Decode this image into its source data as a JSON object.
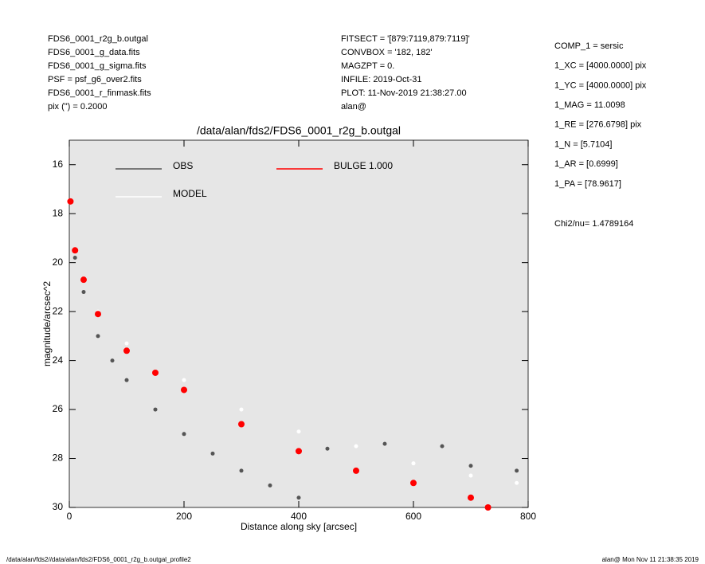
{
  "header": {
    "left": [
      "FDS6_0001_r2g_b.outgal",
      "FDS6_0001_g_data.fits",
      "FDS6_0001_g_sigma.fits",
      "PSF    = psf_g6_over2.fits",
      "FDS6_0001_r_finmask.fits",
      "pix (\") =  0.2000"
    ],
    "center": [
      "FITSECT = '[879:7119,879:7119]'",
      "CONVBOX = '182, 182'",
      "MAGZPT  =                0.",
      "INFILE: 2019-Oct-31",
      "PLOT: 11-Nov-2019 21:38:27.00",
      "alan@"
    ],
    "params": [
      "COMP_1  = sersic",
      "1_XC    = [4000.0000] pix",
      "1_YC    = [4000.0000] pix",
      "1_MAG   = 11.0098",
      "1_RE    = [276.6798] pix",
      "1_N     = [5.7104]",
      "1_AR    = [0.6999]",
      "1_PA    = [78.9617]"
    ],
    "chi2": "Chi2/nu=       1.4789164"
  },
  "chart_data": {
    "type": "scatter",
    "title": "/data/alan/fds2/FDS6_0001_r2g_b.outgal",
    "xlabel": "Distance along sky [arcsec]",
    "ylabel": "magnitude/arcsec^2",
    "xlim": [
      0,
      800
    ],
    "xticks": [
      0,
      200,
      400,
      600,
      800
    ],
    "ylim": [
      30,
      15
    ],
    "yticks": [
      16,
      18,
      20,
      22,
      24,
      26,
      28,
      30
    ],
    "background": "#e6e6e6",
    "series": [
      {
        "name": "OBS",
        "color": "#555555",
        "x": [
          10,
          25,
          50,
          75,
          100,
          150,
          200,
          250,
          300,
          350,
          400,
          450,
          550,
          650,
          700,
          780
        ],
        "values": [
          19.8,
          21.2,
          23.0,
          24.0,
          24.8,
          26.0,
          27.0,
          27.8,
          28.5,
          29.1,
          29.6,
          27.6,
          27.4,
          27.5,
          28.3,
          28.5
        ]
      },
      {
        "name": "MODEL",
        "color": "#ffffff",
        "x": [
          50,
          100,
          200,
          300,
          400,
          500,
          600,
          700,
          780
        ],
        "values": [
          22.0,
          23.3,
          24.8,
          26.0,
          26.9,
          27.5,
          28.2,
          28.7,
          29.0
        ]
      },
      {
        "name": "BULGE  1.000",
        "color": "#ff0000",
        "x": [
          2,
          10,
          25,
          50,
          100,
          150,
          200,
          300,
          400,
          500,
          600,
          700,
          730
        ],
        "values": [
          17.5,
          19.5,
          20.7,
          22.1,
          23.6,
          24.5,
          25.2,
          26.6,
          27.7,
          28.5,
          29.0,
          29.6,
          30.0
        ]
      }
    ]
  },
  "footer": {
    "left": "/data/alan/fds2//data/alan/fds2/FDS6_0001_r2g_b.outgal_profile2",
    "right": "alan@  Mon Nov 11 21:38:35 2019"
  }
}
